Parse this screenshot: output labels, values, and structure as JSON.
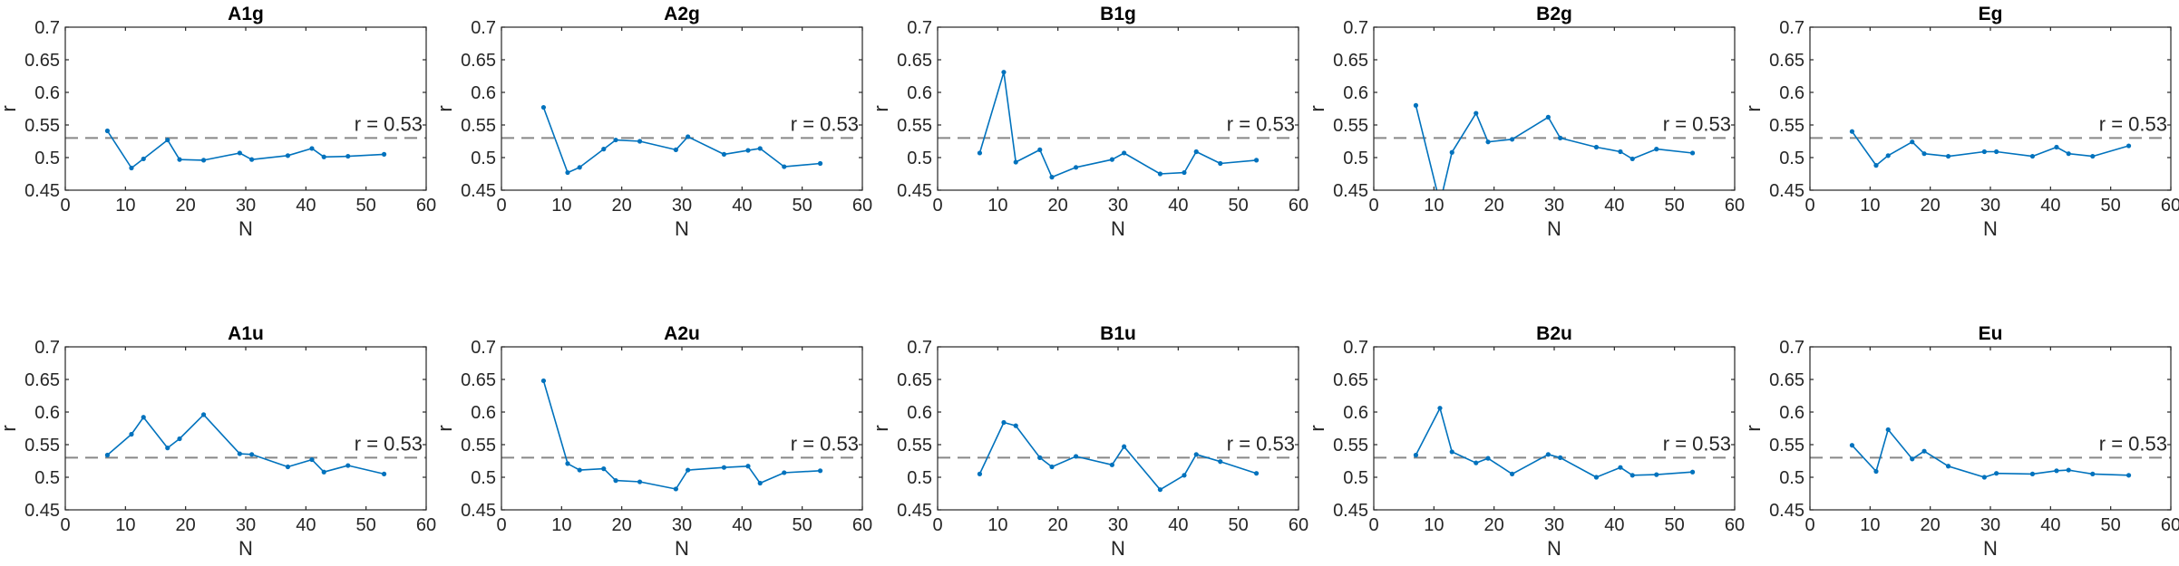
{
  "colors": {
    "series": "#0072BD",
    "reference": "#888888",
    "axis": "#262626"
  },
  "chart_data": [
    {
      "type": "line",
      "title": "A1g",
      "xlabel": "N",
      "ylabel": "r",
      "xlim": [
        0,
        60
      ],
      "ylim": [
        0.45,
        0.7
      ],
      "xticks": [
        0,
        10,
        20,
        30,
        40,
        50,
        60
      ],
      "yticks": [
        0.45,
        0.5,
        0.55,
        0.6,
        0.65,
        0.7
      ],
      "reference": {
        "y": 0.53,
        "label": "r = 0.53"
      },
      "series": [
        {
          "x": [
            7,
            11,
            13,
            17,
            19,
            23,
            29,
            31,
            37,
            41,
            43,
            47,
            53
          ],
          "y": [
            0.541,
            0.484,
            0.498,
            0.527,
            0.497,
            0.496,
            0.507,
            0.497,
            0.503,
            0.514,
            0.501,
            0.502,
            0.505
          ]
        }
      ]
    },
    {
      "type": "line",
      "title": "A2g",
      "xlabel": "N",
      "ylabel": "r",
      "xlim": [
        0,
        60
      ],
      "ylim": [
        0.45,
        0.7
      ],
      "xticks": [
        0,
        10,
        20,
        30,
        40,
        50,
        60
      ],
      "yticks": [
        0.45,
        0.5,
        0.55,
        0.6,
        0.65,
        0.7
      ],
      "reference": {
        "y": 0.53,
        "label": "r = 0.53"
      },
      "series": [
        {
          "x": [
            7,
            11,
            13,
            17,
            19,
            23,
            29,
            31,
            37,
            41,
            43,
            47,
            53
          ],
          "y": [
            0.577,
            0.477,
            0.485,
            0.513,
            0.527,
            0.525,
            0.512,
            0.532,
            0.505,
            0.511,
            0.514,
            0.486,
            0.491
          ]
        }
      ]
    },
    {
      "type": "line",
      "title": "B1g",
      "xlabel": "N",
      "ylabel": "r",
      "xlim": [
        0,
        60
      ],
      "ylim": [
        0.45,
        0.7
      ],
      "xticks": [
        0,
        10,
        20,
        30,
        40,
        50,
        60
      ],
      "yticks": [
        0.45,
        0.5,
        0.55,
        0.6,
        0.65,
        0.7
      ],
      "reference": {
        "y": 0.53,
        "label": "r = 0.53"
      },
      "series": [
        {
          "x": [
            7,
            11,
            13,
            17,
            19,
            23,
            29,
            31,
            37,
            41,
            43,
            47,
            53
          ],
          "y": [
            0.507,
            0.631,
            0.493,
            0.512,
            0.47,
            0.485,
            0.497,
            0.507,
            0.475,
            0.477,
            0.509,
            0.491,
            0.496
          ]
        }
      ]
    },
    {
      "type": "line",
      "title": "B2g",
      "xlabel": "N",
      "ylabel": "r",
      "xlim": [
        0,
        60
      ],
      "ylim": [
        0.45,
        0.7
      ],
      "xticks": [
        0,
        10,
        20,
        30,
        40,
        50,
        60
      ],
      "yticks": [
        0.45,
        0.5,
        0.55,
        0.6,
        0.65,
        0.7
      ],
      "reference": {
        "y": 0.53,
        "label": "r = 0.53"
      },
      "series": [
        {
          "x": [
            7,
            11,
            13,
            17,
            19,
            23,
            29,
            31,
            37,
            41,
            43,
            47,
            53
          ],
          "y": [
            0.58,
            0.43,
            0.508,
            0.568,
            0.524,
            0.528,
            0.562,
            0.53,
            0.516,
            0.509,
            0.498,
            0.513,
            0.507
          ]
        }
      ]
    },
    {
      "type": "line",
      "title": "Eg",
      "xlabel": "N",
      "ylabel": "r",
      "xlim": [
        0,
        60
      ],
      "ylim": [
        0.45,
        0.7
      ],
      "xticks": [
        0,
        10,
        20,
        30,
        40,
        50,
        60
      ],
      "yticks": [
        0.45,
        0.5,
        0.55,
        0.6,
        0.65,
        0.7
      ],
      "reference": {
        "y": 0.53,
        "label": "r = 0.53"
      },
      "series": [
        {
          "x": [
            7,
            11,
            13,
            17,
            19,
            23,
            29,
            31,
            37,
            41,
            43,
            47,
            53
          ],
          "y": [
            0.54,
            0.488,
            0.503,
            0.524,
            0.506,
            0.502,
            0.509,
            0.509,
            0.502,
            0.516,
            0.506,
            0.502,
            0.518
          ]
        }
      ]
    },
    {
      "type": "line",
      "title": "A1u",
      "xlabel": "N",
      "ylabel": "r",
      "xlim": [
        0,
        60
      ],
      "ylim": [
        0.45,
        0.7
      ],
      "xticks": [
        0,
        10,
        20,
        30,
        40,
        50,
        60
      ],
      "yticks": [
        0.45,
        0.5,
        0.55,
        0.6,
        0.65,
        0.7
      ],
      "reference": {
        "y": 0.53,
        "label": "r = 0.53"
      },
      "series": [
        {
          "x": [
            7,
            11,
            13,
            17,
            19,
            23,
            29,
            31,
            37,
            41,
            43,
            47,
            53
          ],
          "y": [
            0.534,
            0.566,
            0.592,
            0.545,
            0.559,
            0.596,
            0.536,
            0.535,
            0.516,
            0.527,
            0.508,
            0.518,
            0.505
          ]
        }
      ]
    },
    {
      "type": "line",
      "title": "A2u",
      "xlabel": "N",
      "ylabel": "r",
      "xlim": [
        0,
        60
      ],
      "ylim": [
        0.45,
        0.7
      ],
      "xticks": [
        0,
        10,
        20,
        30,
        40,
        50,
        60
      ],
      "yticks": [
        0.45,
        0.5,
        0.55,
        0.6,
        0.65,
        0.7
      ],
      "reference": {
        "y": 0.53,
        "label": "r = 0.53"
      },
      "series": [
        {
          "x": [
            7,
            11,
            13,
            17,
            19,
            23,
            29,
            31,
            37,
            41,
            43,
            47,
            53
          ],
          "y": [
            0.648,
            0.521,
            0.511,
            0.513,
            0.495,
            0.493,
            0.482,
            0.511,
            0.515,
            0.517,
            0.491,
            0.507,
            0.51
          ]
        }
      ]
    },
    {
      "type": "line",
      "title": "B1u",
      "xlabel": "N",
      "ylabel": "r",
      "xlim": [
        0,
        60
      ],
      "ylim": [
        0.45,
        0.7
      ],
      "xticks": [
        0,
        10,
        20,
        30,
        40,
        50,
        60
      ],
      "yticks": [
        0.45,
        0.5,
        0.55,
        0.6,
        0.65,
        0.7
      ],
      "reference": {
        "y": 0.53,
        "label": "r = 0.53"
      },
      "series": [
        {
          "x": [
            7,
            11,
            13,
            17,
            19,
            23,
            29,
            31,
            37,
            41,
            43,
            47,
            53
          ],
          "y": [
            0.505,
            0.584,
            0.579,
            0.53,
            0.516,
            0.532,
            0.519,
            0.547,
            0.481,
            0.503,
            0.535,
            0.524,
            0.506
          ]
        }
      ]
    },
    {
      "type": "line",
      "title": "B2u",
      "xlabel": "N",
      "ylabel": "r",
      "xlim": [
        0,
        60
      ],
      "ylim": [
        0.45,
        0.7
      ],
      "xticks": [
        0,
        10,
        20,
        30,
        40,
        50,
        60
      ],
      "yticks": [
        0.45,
        0.5,
        0.55,
        0.6,
        0.65,
        0.7
      ],
      "reference": {
        "y": 0.53,
        "label": "r = 0.53"
      },
      "series": [
        {
          "x": [
            7,
            11,
            13,
            17,
            19,
            23,
            29,
            31,
            37,
            41,
            43,
            47,
            53
          ],
          "y": [
            0.534,
            0.606,
            0.539,
            0.522,
            0.529,
            0.505,
            0.535,
            0.53,
            0.5,
            0.515,
            0.503,
            0.504,
            0.508
          ]
        }
      ]
    },
    {
      "type": "line",
      "title": "Eu",
      "xlabel": "N",
      "ylabel": "r",
      "xlim": [
        0,
        60
      ],
      "ylim": [
        0.45,
        0.7
      ],
      "xticks": [
        0,
        10,
        20,
        30,
        40,
        50,
        60
      ],
      "yticks": [
        0.45,
        0.5,
        0.55,
        0.6,
        0.65,
        0.7
      ],
      "reference": {
        "y": 0.53,
        "label": "r = 0.53"
      },
      "series": [
        {
          "x": [
            7,
            11,
            13,
            17,
            19,
            23,
            29,
            31,
            37,
            41,
            43,
            47,
            53
          ],
          "y": [
            0.549,
            0.509,
            0.573,
            0.528,
            0.54,
            0.517,
            0.5,
            0.506,
            0.505,
            0.51,
            0.511,
            0.505,
            0.503
          ]
        }
      ]
    }
  ]
}
